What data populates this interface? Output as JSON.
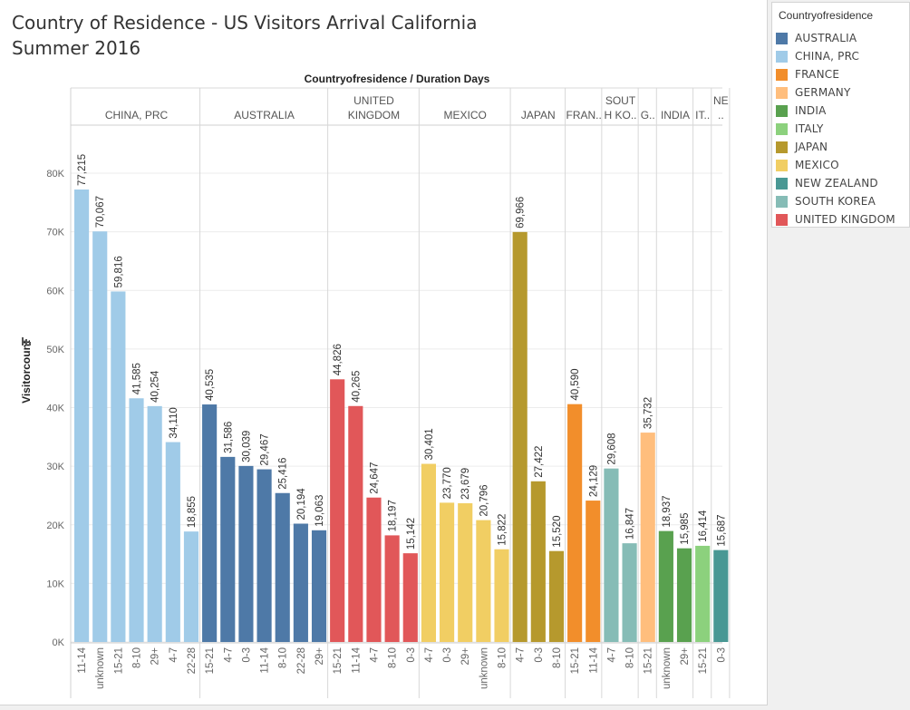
{
  "title_line1": "Country of Residence - US Visitors Arrival California",
  "title_line2": "Summer 2016",
  "legend": {
    "title": "Countryofresidence",
    "items": [
      {
        "label": "AUSTRALIA",
        "color": "#4e79a7"
      },
      {
        "label": "CHINA, PRC",
        "color": "#a0cbe8"
      },
      {
        "label": "FRANCE",
        "color": "#f28e2b"
      },
      {
        "label": "GERMANY",
        "color": "#ffbe7d"
      },
      {
        "label": "INDIA",
        "color": "#59a14f"
      },
      {
        "label": "ITALY",
        "color": "#8cd17d"
      },
      {
        "label": "JAPAN",
        "color": "#b6992d"
      },
      {
        "label": "MEXICO",
        "color": "#f1ce63"
      },
      {
        "label": "NEW ZEALAND",
        "color": "#499894"
      },
      {
        "label": "SOUTH KOREA",
        "color": "#86bcb6"
      },
      {
        "label": "UNITED KINGDOM",
        "color": "#e15759"
      }
    ]
  },
  "chart_data": {
    "type": "bar",
    "title": "Countryofresidence / Duration Days",
    "ylabel": "Visitorcount",
    "ylim": [
      0,
      85000
    ],
    "yticks": [
      0,
      10000,
      20000,
      30000,
      40000,
      50000,
      60000,
      70000,
      80000
    ],
    "ytick_labels": [
      "0K",
      "10K",
      "20K",
      "30K",
      "40K",
      "50K",
      "60K",
      "70K",
      "80K"
    ],
    "grid": true,
    "legend_position": "right",
    "groups": [
      {
        "label": [
          "CHINA, PRC"
        ],
        "color": "#a0cbe8",
        "categories": [
          "11-14",
          "unknown",
          "15-21",
          "8-10",
          "29+",
          "4-7",
          "22-28"
        ],
        "values": [
          77215,
          70067,
          59816,
          41585,
          40254,
          34110,
          18855
        ],
        "labels": [
          "77,215",
          "70,067",
          "59,816",
          "41,585",
          "40,254",
          "34,110",
          "18,855"
        ]
      },
      {
        "label": [
          "AUSTRALIA"
        ],
        "color": "#4e79a7",
        "categories": [
          "15-21",
          "4-7",
          "0-3",
          "11-14",
          "8-10",
          "22-28",
          "29+"
        ],
        "values": [
          40535,
          31586,
          30039,
          29467,
          25416,
          20194,
          19063
        ],
        "labels": [
          "40,535",
          "31,586",
          "30,039",
          "29,467",
          "25,416",
          "20,194",
          "19,063"
        ]
      },
      {
        "label": [
          "UNITED",
          "KINGDOM"
        ],
        "color": "#e15759",
        "categories": [
          "15-21",
          "11-14",
          "4-7",
          "8-10",
          "0-3"
        ],
        "values": [
          44826,
          40265,
          24647,
          18197,
          15142
        ],
        "labels": [
          "44,826",
          "40,265",
          "24,647",
          "18,197",
          "15,142"
        ]
      },
      {
        "label": [
          "MEXICO"
        ],
        "color": "#f1ce63",
        "categories": [
          "4-7",
          "0-3",
          "29+",
          "unknown",
          "8-10"
        ],
        "values": [
          30401,
          23770,
          23679,
          20796,
          15822
        ],
        "labels": [
          "30,401",
          "23,770",
          "23,679",
          "20,796",
          "15,822"
        ]
      },
      {
        "label": [
          "JAPAN"
        ],
        "color": "#b6992d",
        "categories": [
          "4-7",
          "0-3",
          "8-10"
        ],
        "values": [
          69966,
          27422,
          15520
        ],
        "labels": [
          "69,966",
          "27,422",
          "15,520"
        ]
      },
      {
        "label": [
          "FRAN.."
        ],
        "color": "#f28e2b",
        "categories": [
          "15-21",
          "11-14"
        ],
        "values": [
          40590,
          24129
        ],
        "labels": [
          "40,590",
          "24,129"
        ]
      },
      {
        "label": [
          "SOUT",
          "H KO.."
        ],
        "color": "#86bcb6",
        "categories": [
          "4-7",
          "8-10"
        ],
        "values": [
          29608,
          16847
        ],
        "labels": [
          "29,608",
          "16,847"
        ]
      },
      {
        "label": [
          "G.."
        ],
        "color": "#ffbe7d",
        "categories": [
          "15-21"
        ],
        "values": [
          35732
        ],
        "labels": [
          "35,732"
        ]
      },
      {
        "label": [
          "INDIA"
        ],
        "color": "#59a14f",
        "categories": [
          "unknown",
          "29+"
        ],
        "values": [
          18937,
          15985
        ],
        "labels": [
          "18,937",
          "15,985"
        ]
      },
      {
        "label": [
          "IT.."
        ],
        "color": "#8cd17d",
        "categories": [
          "15-21"
        ],
        "values": [
          16414
        ],
        "labels": [
          "16,414"
        ]
      },
      {
        "label": [
          "NE",
          ".."
        ],
        "color": "#499894",
        "categories": [
          "0-3"
        ],
        "values": [
          15687
        ],
        "labels": [
          "15,687"
        ]
      }
    ]
  }
}
